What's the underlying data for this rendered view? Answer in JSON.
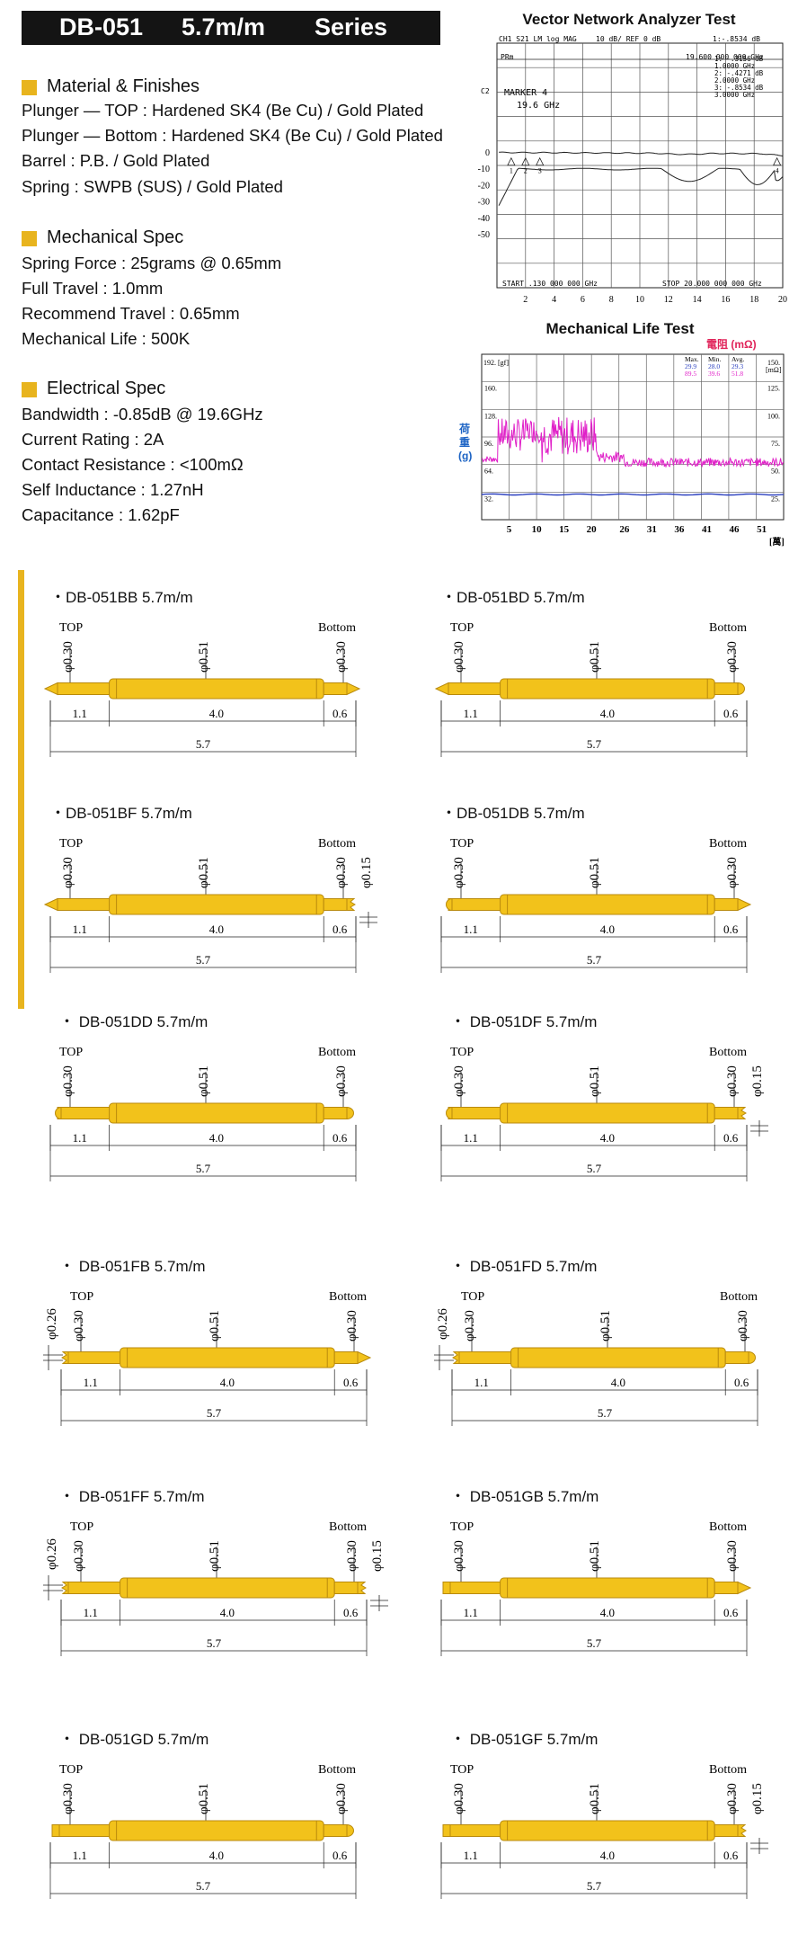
{
  "header": {
    "model": "DB-051",
    "length": "5.7m/m",
    "series": "Series"
  },
  "material": {
    "heading": "Material & Finishes",
    "lines": [
      "Plunger — TOP : Hardened SK4 (Be Cu) / Gold Plated",
      "Plunger — Bottom : Hardened SK4 (Be Cu) / Gold Plated",
      "Barrel : P.B. / Gold Plated",
      "Spring : SWPB (SUS) / Gold Plated"
    ]
  },
  "mechanical": {
    "heading": "Mechanical Spec",
    "lines": [
      "Spring Force : 25grams @ 0.65mm",
      "Full Travel : 1.0mm",
      "Recommend Travel : 0.65mm",
      "Mechanical Life : 500K"
    ]
  },
  "electrical": {
    "heading": "Electrical Spec",
    "lines": [
      "Bandwidth : -0.85dB @ 19.6GHz",
      "Current Rating : 2A",
      "Contact Resistance : <100mΩ",
      "Self Inductance : 1.27nH",
      "Capacitance : 1.62pF"
    ]
  },
  "vna": {
    "title": "Vector Network Analyzer Test",
    "header_left": "CH1 S21 LM log MAG",
    "header_mid": "10 dB/ REF 0 dB",
    "header_right": "1:-.8534 dB",
    "header_right_value": "19.600 000 000 GHz",
    "ch_label": "PRm",
    "c2_label": "C2",
    "marker_label": "MARKER 4",
    "marker_value": "19.6 GHz",
    "marker_readouts": [
      "1: -.3156 dB",
      "1.0000 GHz",
      "2: -.4271 dB",
      "2.0000 GHz",
      "3: -.8534 dB",
      "3.0000 GHz"
    ],
    "start_label": "START .130 000 000 GHz",
    "stop_label": "STOP 20.000 000 000 GHz",
    "y_ticks": [
      "0",
      "-10",
      "-20",
      "-30",
      "-40",
      "-50"
    ],
    "x_ticks": [
      "2",
      "4",
      "6",
      "8",
      "10",
      "12",
      "14",
      "16",
      "18",
      "20"
    ],
    "markers": [
      "1",
      "2",
      "3",
      "4"
    ]
  },
  "life": {
    "title": "Mechanical Life Test",
    "right_unit": "電阻 (mΩ)",
    "left_unit_chars": [
      "荷",
      "重",
      "(g)"
    ],
    "gf_label": "192. [gf]",
    "mohm_label": "[mΩ]",
    "left_ticks": [
      "192.",
      "160.",
      "128.",
      "96.",
      "64.",
      "32."
    ],
    "right_ticks": [
      "150.",
      "125.",
      "100.",
      "75.",
      "50.",
      "25."
    ],
    "x_ticks": [
      "5",
      "10",
      "15",
      "20",
      "26",
      "31",
      "36",
      "41",
      "46",
      "51"
    ],
    "x_unit": "[萬]",
    "stats_headers": [
      "Max.",
      "Min.",
      "Avg."
    ],
    "stats_force": [
      "29.9",
      "28.0",
      "29.3"
    ],
    "stats_res": [
      "89.5",
      "39.6",
      "51.8"
    ],
    "colors": {
      "resistance": "#e020c8",
      "force": "#2a3fbf",
      "unit_red": "#e0245a",
      "unit_blue": "#1c63c4"
    }
  },
  "probes": [
    {
      "title": "DB-051BB 5.7m/m",
      "top": "TOP",
      "bottom": "Bottom",
      "top_tip": "B",
      "bottom_tip": "B"
    },
    {
      "title": "DB-051BD 5.7m/m",
      "top": "TOP",
      "bottom": "Bottom",
      "top_tip": "B",
      "bottom_tip": "D"
    },
    {
      "title": "DB-051BF 5.7m/m",
      "top": "TOP",
      "bottom": "Bottom",
      "top_tip": "B",
      "bottom_tip": "F"
    },
    {
      "title": "DB-051DB 5.7m/m",
      "top": "TOP",
      "bottom": "Bottom",
      "top_tip": "D",
      "bottom_tip": "B"
    },
    {
      "title": "DB-051DD 5.7m/m",
      "top": "TOP",
      "bottom": "Bottom",
      "top_tip": "D",
      "bottom_tip": "D"
    },
    {
      "title": "DB-051DF 5.7m/m",
      "top": "TOP",
      "bottom": "Bottom",
      "top_tip": "D",
      "bottom_tip": "F"
    },
    {
      "title": "DB-051FB 5.7m/m",
      "top": "TOP",
      "bottom": "Bottom",
      "top_tip": "F",
      "bottom_tip": "B"
    },
    {
      "title": "DB-051FD 5.7m/m",
      "top": "TOP",
      "bottom": "Bottom",
      "top_tip": "F",
      "bottom_tip": "D"
    },
    {
      "title": "DB-051FF 5.7m/m",
      "top": "TOP",
      "bottom": "Bottom",
      "top_tip": "F",
      "bottom_tip": "F"
    },
    {
      "title": "DB-051GB 5.7m/m",
      "top": "TOP",
      "bottom": "Bottom",
      "top_tip": "G",
      "bottom_tip": "B"
    },
    {
      "title": "DB-051GD 5.7m/m",
      "top": "TOP",
      "bottom": "Bottom",
      "top_tip": "G",
      "bottom_tip": "D"
    },
    {
      "title": "DB-051GF 5.7m/m",
      "top": "TOP",
      "bottom": "Bottom",
      "top_tip": "G",
      "bottom_tip": "F"
    }
  ],
  "dims": {
    "top_dia": "φ0.30",
    "barrel_dia": "φ0.51",
    "bottom_dia": "φ0.30",
    "f_tip_dia": "φ0.15",
    "top_crown_dia": "φ0.26",
    "top_len": "1.1",
    "barrel_len": "4.0",
    "bottom_len": "0.6",
    "total_len": "5.7"
  },
  "colors": {
    "accent": "#e8b41e",
    "gold": "#f2c21b",
    "gold_dark": "#b98a0c",
    "title_bg": "#141414"
  }
}
